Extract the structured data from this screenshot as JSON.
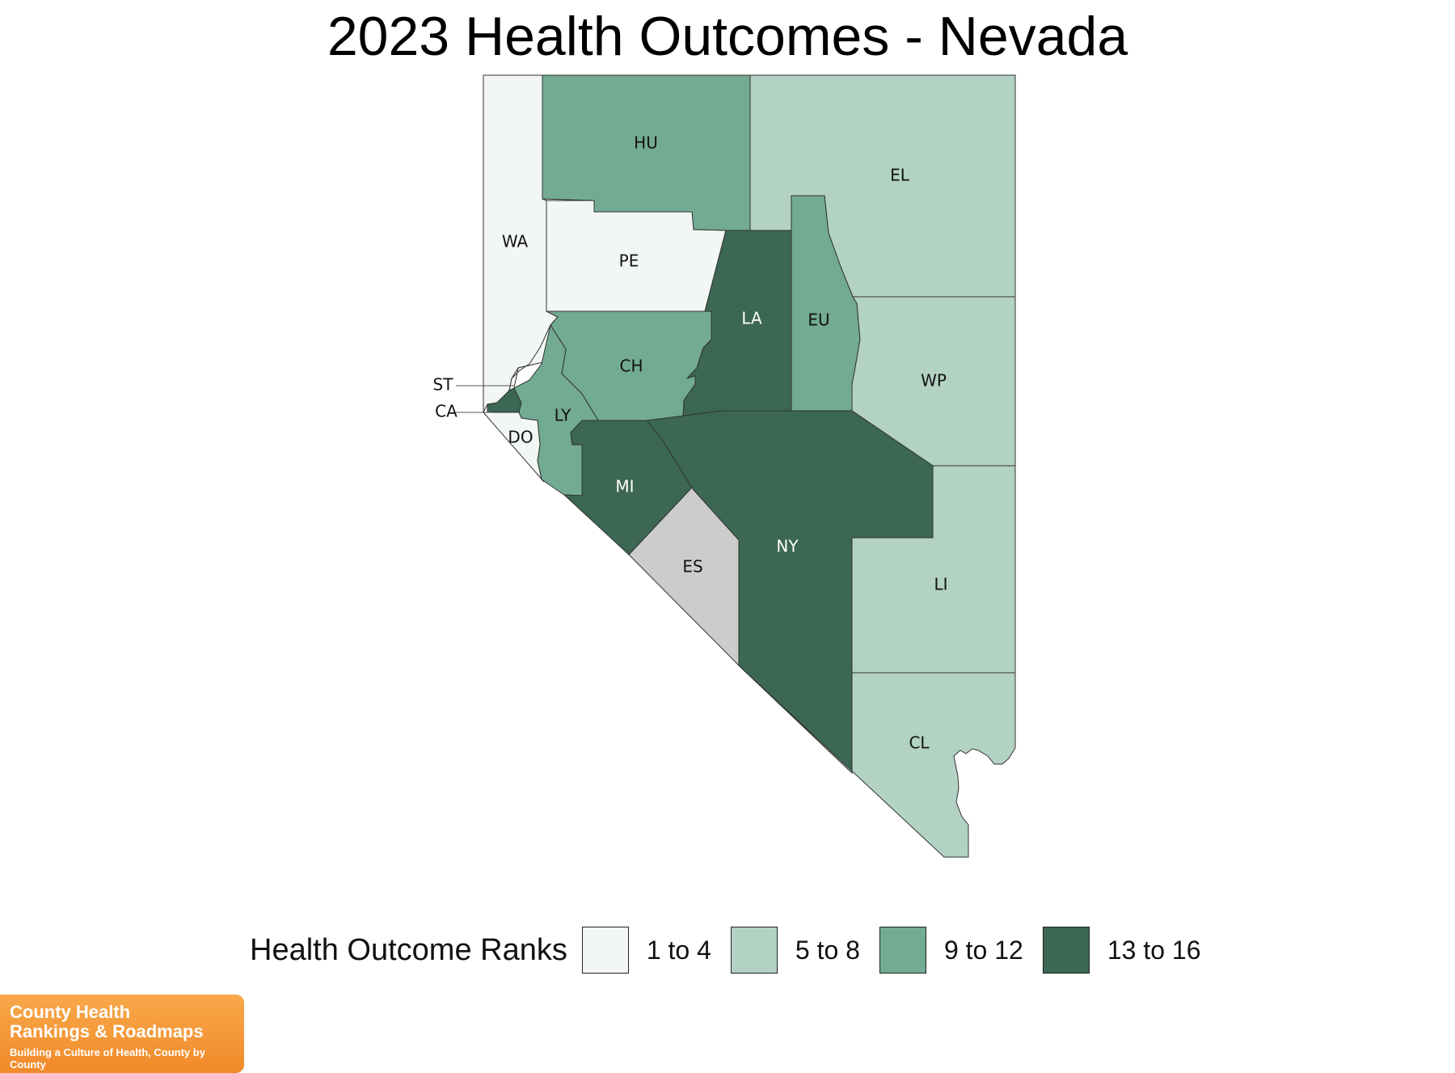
{
  "title": "2023 Health Outcomes - Nevada",
  "legend": {
    "title": "Health Outcome Ranks",
    "items": [
      {
        "key": "r1",
        "label": "1 to 4",
        "color": "#f2f6f4"
      },
      {
        "key": "r2",
        "label": "5 to 8",
        "color": "#b2d2c3"
      },
      {
        "key": "r3",
        "label": "9 to 12",
        "color": "#72ab92"
      },
      {
        "key": "r4",
        "label": "13 to 16",
        "color": "#3b6753"
      }
    ]
  },
  "no_data_color": "#cccccc",
  "counties": [
    {
      "abbr": "WA",
      "bin": "r1"
    },
    {
      "abbr": "HU",
      "bin": "r3"
    },
    {
      "abbr": "EL",
      "bin": "r2"
    },
    {
      "abbr": "PE",
      "bin": "r1"
    },
    {
      "abbr": "LA",
      "bin": "r4"
    },
    {
      "abbr": "EU",
      "bin": "r3"
    },
    {
      "abbr": "CH",
      "bin": "r3"
    },
    {
      "abbr": "WP",
      "bin": "r2"
    },
    {
      "abbr": "ST",
      "bin": "r1"
    },
    {
      "abbr": "CA",
      "bin": "r4"
    },
    {
      "abbr": "LY",
      "bin": "r3"
    },
    {
      "abbr": "DO",
      "bin": "r1"
    },
    {
      "abbr": "MI",
      "bin": "r4"
    },
    {
      "abbr": "NY",
      "bin": "r4"
    },
    {
      "abbr": "ES",
      "bin": "none"
    },
    {
      "abbr": "LI",
      "bin": "r2"
    },
    {
      "abbr": "CL",
      "bin": "r2"
    }
  ],
  "logo": {
    "line1": "County Health",
    "line2": "Rankings & Roadmaps",
    "tagline": "Building a Culture of Health, County by County"
  }
}
